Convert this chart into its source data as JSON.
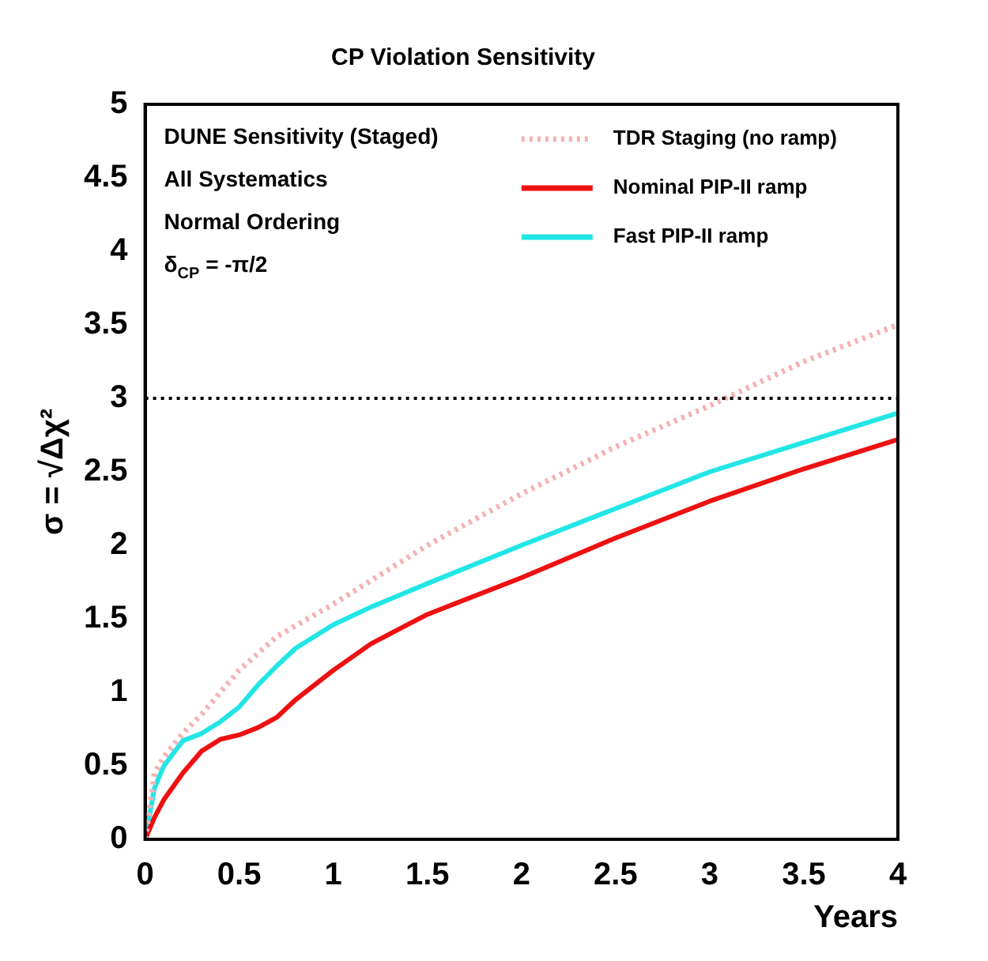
{
  "chart_data": {
    "type": "line",
    "title": "CP Violation Sensitivity",
    "xlabel": "Years",
    "ylabel": "σ = √Δχ²",
    "xlim": [
      0,
      4
    ],
    "xticks": [
      0,
      0.5,
      1,
      1.5,
      2,
      2.5,
      3,
      3.5,
      4
    ],
    "ylim": [
      0,
      5
    ],
    "yticks": [
      0,
      0.5,
      1,
      1.5,
      2,
      2.5,
      3,
      3.5,
      4,
      4.5,
      5
    ],
    "grid": false,
    "legend": "top right",
    "marker": "none",
    "annotations": [
      "DUNE Sensitivity (Staged)",
      "All Systematics",
      "Normal Ordering",
      "δ$_{CP}$ = -π/2"
    ],
    "ref_lines": [
      {
        "axis": "y",
        "value": 3,
        "color": "#000000",
        "line_style": "dotted"
      }
    ],
    "series": [
      {
        "name": "TDR Staging (no ramp)",
        "color": "#f4b4b4",
        "line_style": "dotted",
        "x": [
          0,
          0.05,
          0.1,
          0.2,
          0.3,
          0.5,
          0.7,
          1,
          1.5,
          2,
          2.5,
          3,
          3.5,
          4
        ],
        "values": [
          0,
          0.45,
          0.56,
          0.72,
          0.85,
          1.15,
          1.38,
          1.6,
          2.0,
          2.35,
          2.67,
          2.95,
          3.25,
          3.5
        ]
      },
      {
        "name": "Nominal PIP-II ramp",
        "color": "#ee1111",
        "line_style": "solid",
        "x": [
          0,
          0.05,
          0.1,
          0.2,
          0.3,
          0.4,
          0.5,
          0.6,
          0.7,
          0.8,
          1,
          1.2,
          1.5,
          2,
          2.5,
          3,
          3.5,
          4
        ],
        "values": [
          0,
          0.15,
          0.27,
          0.45,
          0.6,
          0.68,
          0.71,
          0.76,
          0.83,
          0.95,
          1.15,
          1.33,
          1.53,
          1.78,
          2.05,
          2.3,
          2.52,
          2.72
        ]
      },
      {
        "name": "Fast PIP-II ramp",
        "color": "#22e6e6",
        "line_style": "solid",
        "x": [
          0,
          0.05,
          0.1,
          0.2,
          0.3,
          0.4,
          0.5,
          0.6,
          0.7,
          0.8,
          1,
          1.2,
          1.5,
          2,
          2.5,
          3,
          3.5,
          4
        ],
        "values": [
          0,
          0.35,
          0.5,
          0.67,
          0.72,
          0.8,
          0.9,
          1.05,
          1.18,
          1.3,
          1.46,
          1.58,
          1.74,
          2.0,
          2.25,
          2.5,
          2.7,
          2.9
        ]
      }
    ]
  }
}
